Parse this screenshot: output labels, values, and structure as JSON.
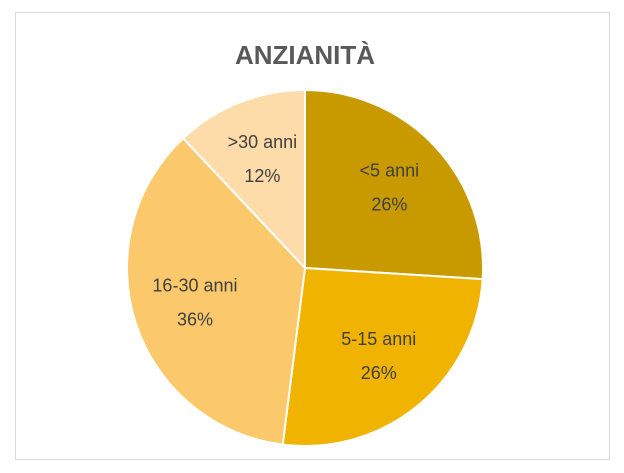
{
  "chart_data": {
    "type": "pie",
    "title": "ANZIANITÀ",
    "categories": [
      "<5 anni",
      "5-15 anni",
      "16-30 anni",
      ">30 anni"
    ],
    "values": [
      26,
      26,
      36,
      12
    ],
    "value_labels": [
      "26%",
      "26%",
      "36%",
      "12%"
    ],
    "colors": [
      "#c99a00",
      "#f0b400",
      "#fbc96b",
      "#fddcaa"
    ]
  }
}
